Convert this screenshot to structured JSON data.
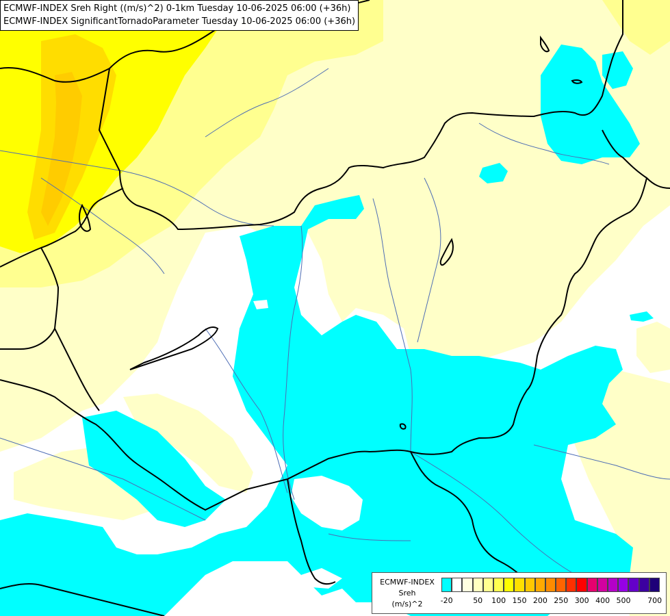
{
  "title": {
    "line1": "ECMWF-INDEX Sreh Right ((m/s)^2) 0-1km Tuesday 10-06-2025 06:00 (+36h)",
    "line2": "ECMWF-INDEX SignificantTornadoParameter Tuesday 10-06-2025 06:00 (+36h)"
  },
  "legend": {
    "source": "ECMWF-INDEX",
    "variable": "Sreh",
    "unit": "(m/s)^2",
    "tick_labels": [
      "-20",
      "50",
      "100",
      "150",
      "200",
      "250",
      "300",
      "400",
      "500",
      "700"
    ],
    "colors": [
      "#00ffff",
      "#ffffff",
      "#ffffe0",
      "#ffffc0",
      "#ffff90",
      "#ffff50",
      "#ffff00",
      "#ffe000",
      "#ffc800",
      "#ffaa00",
      "#ff8c00",
      "#ff6400",
      "#ff3000",
      "#ff0000",
      "#e6006e",
      "#d200a0",
      "#b400c8",
      "#9600e6",
      "#6400c8",
      "#3c00a0",
      "#1e0078"
    ]
  },
  "map": {
    "colors": {
      "background": "#ffffff",
      "cyan": "#00ffff",
      "pale_yellow": "#ffffc8",
      "light_yellow": "#ffff90",
      "yellow": "#ffff00",
      "gold": "#ffdd00",
      "orange": "#ffb400",
      "border": "#000000",
      "river": "#4c6cb4"
    }
  }
}
